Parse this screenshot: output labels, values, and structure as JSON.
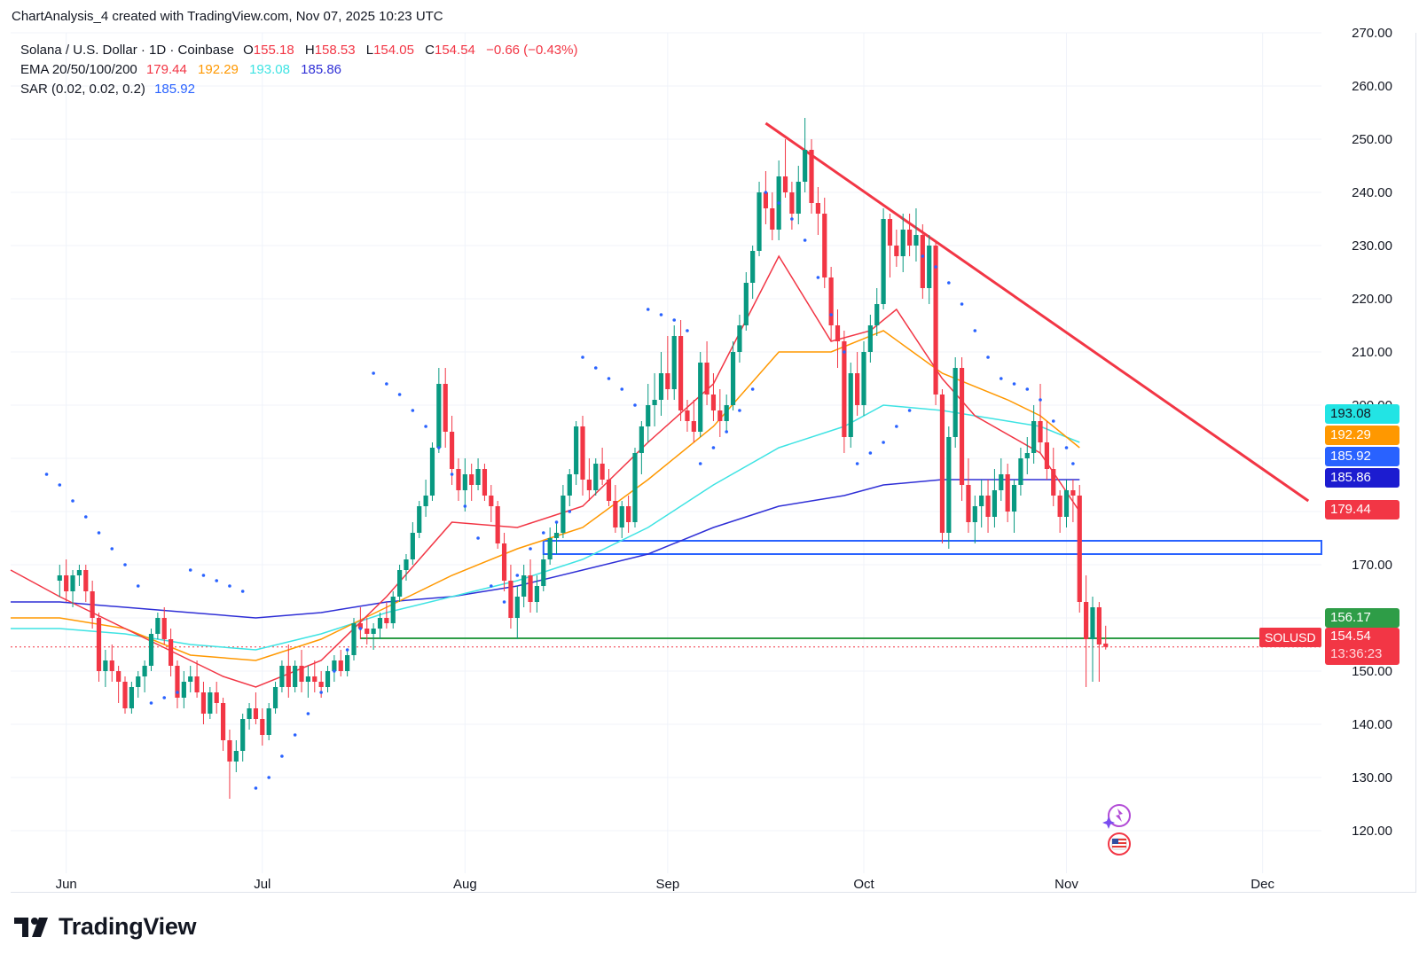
{
  "header": {
    "attribution": "ChartAnalysis_4 created with TradingView.com, Nov 07, 2025 10:23 UTC"
  },
  "legend": {
    "title": "Solana / U.S. Dollar · 1D · Coinbase",
    "open_label": "O",
    "open": "155.18",
    "high_label": "H",
    "high": "158.53",
    "low_label": "L",
    "low": "154.05",
    "close_label": "C",
    "close": "154.54",
    "change": "−0.66 (−0.43%)",
    "ema_label": "EMA 20/50/100/200",
    "ema20": "179.44",
    "ema50": "192.29",
    "ema100": "193.08",
    "ema200": "185.86",
    "sar_label": "SAR (0.02, 0.02, 0.2)",
    "sar": "185.92"
  },
  "colors": {
    "up": "#089981",
    "down": "#f23645",
    "ema20": "#f23645",
    "ema50": "#ff9800",
    "ema100": "#3ee3e3",
    "ema200": "#2f2fd6",
    "sar": "#2962ff",
    "trendline": "#f23645",
    "zone": "#2962ff",
    "support": "#2e9d47"
  },
  "price_tags": {
    "ema100": "193.08",
    "ema50": "192.29",
    "sar": "185.92",
    "ema200": "185.86",
    "ema20": "179.44",
    "support": "156.17",
    "symbol": "SOLUSD",
    "last": "154.54",
    "countdown": "13:36:23"
  },
  "brand": {
    "name": "TradingView"
  },
  "chart_data": {
    "type": "candlestick",
    "symbol": "SOLUSD",
    "timeframe": "1D",
    "x_ticks": [
      "Jun",
      "Jul",
      "Aug",
      "Sep",
      "Oct",
      "Nov",
      "Dec"
    ],
    "x_tick_days": [
      1,
      31,
      62,
      93,
      123,
      154,
      184
    ],
    "y_ticks": [
      120,
      130,
      140,
      150,
      160,
      170,
      180,
      190,
      200,
      210,
      220,
      230,
      240,
      250,
      260,
      270
    ],
    "ylim": [
      112,
      270
    ],
    "xlim": [
      -7.5,
      193
    ],
    "candles": [
      [
        167,
        170,
        164,
        168
      ],
      [
        168,
        171,
        163,
        165
      ],
      [
        165,
        169,
        162,
        168
      ],
      [
        168,
        170,
        166,
        169
      ],
      [
        169,
        170,
        163,
        165
      ],
      [
        165,
        167,
        158,
        160
      ],
      [
        160,
        161,
        148,
        150
      ],
      [
        150,
        154,
        147,
        152
      ],
      [
        152,
        155,
        148,
        150
      ],
      [
        150,
        151,
        144,
        148
      ],
      [
        148,
        149,
        142,
        143
      ],
      [
        143,
        148,
        142,
        147
      ],
      [
        147,
        150,
        145,
        149
      ],
      [
        149,
        152,
        146,
        151
      ],
      [
        151,
        158,
        150,
        157
      ],
      [
        157,
        161,
        156,
        160
      ],
      [
        160,
        162,
        155,
        156
      ],
      [
        156,
        158,
        149,
        151
      ],
      [
        151,
        152,
        143,
        145
      ],
      [
        145,
        150,
        143,
        148
      ],
      [
        148,
        151,
        146,
        149
      ],
      [
        149,
        152,
        145,
        146
      ],
      [
        146,
        148,
        140,
        142
      ],
      [
        142,
        147,
        141,
        146
      ],
      [
        146,
        148,
        142,
        144
      ],
      [
        144,
        145,
        135,
        137
      ],
      [
        137,
        139,
        126,
        133
      ],
      [
        133,
        137,
        131,
        135
      ],
      [
        135,
        142,
        133,
        141
      ],
      [
        141,
        144,
        139,
        143
      ],
      [
        143,
        146,
        140,
        141
      ],
      [
        141,
        143,
        136,
        138
      ],
      [
        138,
        144,
        137,
        143
      ],
      [
        143,
        148,
        142,
        147
      ],
      [
        147,
        152,
        146,
        151
      ],
      [
        151,
        155,
        145,
        147
      ],
      [
        147,
        152,
        146,
        151
      ],
      [
        151,
        154,
        146,
        148
      ],
      [
        148,
        151,
        145,
        149
      ],
      [
        149,
        152,
        146,
        148
      ],
      [
        148,
        150,
        145,
        147
      ],
      [
        147,
        151,
        146,
        150
      ],
      [
        150,
        153,
        148,
        152
      ],
      [
        152,
        154,
        149,
        150
      ],
      [
        150,
        154,
        149,
        153
      ],
      [
        153,
        160,
        152,
        159
      ],
      [
        159,
        162,
        156,
        158
      ],
      [
        158,
        160,
        155,
        157
      ],
      [
        157,
        159,
        154,
        158
      ],
      [
        158,
        161,
        156,
        160
      ],
      [
        160,
        163,
        158,
        159
      ],
      [
        159,
        165,
        158,
        164
      ],
      [
        164,
        170,
        163,
        169
      ],
      [
        169,
        172,
        167,
        171
      ],
      [
        171,
        178,
        170,
        176
      ],
      [
        176,
        182,
        175,
        181
      ],
      [
        181,
        186,
        179,
        183
      ],
      [
        183,
        193,
        182,
        192
      ],
      [
        192,
        207,
        191,
        204
      ],
      [
        204,
        207,
        192,
        195
      ],
      [
        195,
        198,
        185,
        188
      ],
      [
        188,
        190,
        182,
        184
      ],
      [
        184,
        190,
        180,
        187
      ],
      [
        187,
        189,
        182,
        185
      ],
      [
        185,
        190,
        184,
        188
      ],
      [
        188,
        189,
        182,
        183
      ],
      [
        183,
        185,
        178,
        181
      ],
      [
        181,
        182,
        173,
        174
      ],
      [
        174,
        176,
        165,
        167
      ],
      [
        167,
        170,
        158,
        160
      ],
      [
        160,
        166,
        156,
        164
      ],
      [
        164,
        170,
        162,
        168
      ],
      [
        168,
        171,
        161,
        163
      ],
      [
        163,
        168,
        161,
        166
      ],
      [
        166,
        172,
        165,
        171
      ],
      [
        171,
        177,
        170,
        175
      ],
      [
        175,
        178,
        172,
        176
      ],
      [
        176,
        185,
        175,
        183
      ],
      [
        183,
        188,
        181,
        187
      ],
      [
        187,
        197,
        185,
        196
      ],
      [
        196,
        198,
        183,
        186
      ],
      [
        186,
        190,
        182,
        184
      ],
      [
        184,
        190,
        183,
        189
      ],
      [
        189,
        192,
        185,
        186
      ],
      [
        186,
        188,
        181,
        182
      ],
      [
        182,
        185,
        176,
        177
      ],
      [
        177,
        182,
        175,
        181
      ],
      [
        181,
        183,
        176,
        178
      ],
      [
        178,
        192,
        177,
        191
      ],
      [
        191,
        197,
        187,
        196
      ],
      [
        196,
        204,
        193,
        200
      ],
      [
        200,
        206,
        196,
        201
      ],
      [
        201,
        210,
        198,
        206
      ],
      [
        206,
        213,
        201,
        203
      ],
      [
        203,
        215,
        201,
        213
      ],
      [
        213,
        216,
        197,
        199
      ],
      [
        199,
        201,
        195,
        197
      ],
      [
        197,
        201,
        193,
        195
      ],
      [
        195,
        210,
        194,
        208
      ],
      [
        208,
        212,
        200,
        202
      ],
      [
        202,
        206,
        197,
        199
      ],
      [
        199,
        203,
        194,
        197
      ],
      [
        197,
        202,
        195,
        200
      ],
      [
        200,
        212,
        199,
        210
      ],
      [
        210,
        217,
        208,
        215
      ],
      [
        215,
        225,
        214,
        223
      ],
      [
        223,
        230,
        220,
        229
      ],
      [
        229,
        242,
        228,
        240
      ],
      [
        240,
        244,
        234,
        237
      ],
      [
        237,
        240,
        231,
        233
      ],
      [
        233,
        246,
        231,
        243
      ],
      [
        243,
        250,
        239,
        240
      ],
      [
        240,
        242,
        233,
        236
      ],
      [
        236,
        245,
        234,
        242
      ],
      [
        242,
        254,
        240,
        248
      ],
      [
        248,
        250,
        236,
        238
      ],
      [
        238,
        241,
        232,
        236
      ],
      [
        236,
        239,
        222,
        224
      ],
      [
        224,
        226,
        212,
        215
      ],
      [
        215,
        218,
        207,
        212
      ],
      [
        212,
        214,
        191,
        194
      ],
      [
        194,
        208,
        192,
        206
      ],
      [
        206,
        210,
        198,
        200
      ],
      [
        200,
        212,
        198,
        210
      ],
      [
        210,
        217,
        208,
        215
      ],
      [
        215,
        222,
        213,
        219
      ],
      [
        219,
        237,
        218,
        235
      ],
      [
        235,
        236,
        224,
        230
      ],
      [
        230,
        233,
        226,
        228
      ],
      [
        228,
        236,
        225,
        233
      ],
      [
        233,
        236,
        228,
        230
      ],
      [
        230,
        237,
        227,
        232
      ],
      [
        232,
        234,
        220,
        222
      ],
      [
        222,
        232,
        219,
        230
      ],
      [
        230,
        231,
        200,
        202
      ],
      [
        202,
        203,
        174,
        176
      ],
      [
        176,
        196,
        173,
        194
      ],
      [
        194,
        209,
        192,
        207
      ],
      [
        207,
        209,
        182,
        185
      ],
      [
        185,
        190,
        176,
        178
      ],
      [
        178,
        183,
        174,
        181
      ],
      [
        181,
        186,
        177,
        183
      ],
      [
        183,
        186,
        176,
        179
      ],
      [
        179,
        188,
        177,
        184
      ],
      [
        184,
        190,
        182,
        187
      ],
      [
        187,
        189,
        178,
        180
      ],
      [
        180,
        186,
        176,
        185
      ],
      [
        185,
        192,
        183,
        190
      ],
      [
        190,
        194,
        187,
        191
      ],
      [
        191,
        200,
        189,
        197
      ],
      [
        197,
        204,
        191,
        193
      ],
      [
        193,
        197,
        186,
        188
      ],
      [
        188,
        192,
        181,
        183
      ],
      [
        183,
        184,
        176,
        179
      ],
      [
        179,
        186,
        177,
        184
      ],
      [
        184,
        186,
        178,
        183
      ],
      [
        183,
        185,
        161,
        163
      ],
      [
        163,
        168,
        147,
        156
      ],
      [
        156,
        164,
        148,
        162
      ],
      [
        162,
        163,
        148,
        155
      ],
      [
        155.18,
        158.53,
        154.05,
        154.54
      ]
    ],
    "ema20": [
      [
        -7.5,
        169
      ],
      [
        0,
        164
      ],
      [
        10,
        158
      ],
      [
        20,
        152
      ],
      [
        25,
        149
      ],
      [
        30,
        147
      ],
      [
        40,
        152
      ],
      [
        50,
        164
      ],
      [
        60,
        178
      ],
      [
        70,
        177
      ],
      [
        80,
        181
      ],
      [
        90,
        193
      ],
      [
        100,
        204
      ],
      [
        110,
        228
      ],
      [
        118,
        212
      ],
      [
        124,
        214
      ],
      [
        128,
        218
      ],
      [
        135,
        205
      ],
      [
        140,
        198
      ],
      [
        150,
        191
      ],
      [
        156,
        180
      ]
    ],
    "ema50": [
      [
        -7.5,
        160
      ],
      [
        0,
        160
      ],
      [
        10,
        158
      ],
      [
        20,
        153
      ],
      [
        30,
        152
      ],
      [
        40,
        156
      ],
      [
        50,
        162
      ],
      [
        60,
        168
      ],
      [
        70,
        173
      ],
      [
        80,
        177
      ],
      [
        90,
        186
      ],
      [
        100,
        196
      ],
      [
        110,
        210
      ],
      [
        118,
        210
      ],
      [
        126,
        214
      ],
      [
        135,
        206
      ],
      [
        145,
        201
      ],
      [
        150,
        198
      ],
      [
        156,
        192
      ]
    ],
    "ema100": [
      [
        -7.5,
        158
      ],
      [
        0,
        158
      ],
      [
        10,
        157
      ],
      [
        20,
        155
      ],
      [
        30,
        154
      ],
      [
        40,
        157
      ],
      [
        50,
        161
      ],
      [
        60,
        164
      ],
      [
        70,
        167
      ],
      [
        80,
        171
      ],
      [
        90,
        177
      ],
      [
        100,
        185
      ],
      [
        110,
        192
      ],
      [
        120,
        196
      ],
      [
        126,
        200
      ],
      [
        135,
        199
      ],
      [
        145,
        197
      ],
      [
        150,
        196
      ],
      [
        156,
        193
      ]
    ],
    "ema200": [
      [
        -7.5,
        163
      ],
      [
        0,
        163
      ],
      [
        10,
        162
      ],
      [
        20,
        161
      ],
      [
        30,
        160
      ],
      [
        40,
        161
      ],
      [
        50,
        163
      ],
      [
        60,
        164
      ],
      [
        70,
        166
      ],
      [
        80,
        169
      ],
      [
        90,
        172
      ],
      [
        100,
        177
      ],
      [
        110,
        181
      ],
      [
        120,
        183
      ],
      [
        126,
        185
      ],
      [
        135,
        186
      ],
      [
        145,
        186
      ],
      [
        150,
        186
      ],
      [
        156,
        186
      ]
    ],
    "sar": [
      [
        -2,
        187
      ],
      [
        0,
        185
      ],
      [
        2,
        182
      ],
      [
        4,
        179
      ],
      [
        6,
        176
      ],
      [
        8,
        173
      ],
      [
        10,
        170
      ],
      [
        12,
        166
      ],
      [
        14,
        144
      ],
      [
        16,
        145
      ],
      [
        18,
        146
      ],
      [
        20,
        169
      ],
      [
        22,
        168
      ],
      [
        24,
        167
      ],
      [
        26,
        166
      ],
      [
        28,
        165
      ],
      [
        30,
        128
      ],
      [
        32,
        130
      ],
      [
        34,
        134
      ],
      [
        36,
        138
      ],
      [
        38,
        142
      ],
      [
        40,
        146
      ],
      [
        42,
        150
      ],
      [
        44,
        154
      ],
      [
        46,
        158
      ],
      [
        48,
        206
      ],
      [
        50,
        204
      ],
      [
        52,
        202
      ],
      [
        54,
        199
      ],
      [
        56,
        196
      ],
      [
        58,
        192
      ],
      [
        60,
        187
      ],
      [
        62,
        181
      ],
      [
        64,
        175
      ],
      [
        66,
        166
      ],
      [
        68,
        163
      ],
      [
        70,
        168
      ],
      [
        72,
        173
      ],
      [
        74,
        176
      ],
      [
        76,
        178
      ],
      [
        78,
        180
      ],
      [
        80,
        209
      ],
      [
        82,
        207
      ],
      [
        84,
        205
      ],
      [
        86,
        203
      ],
      [
        88,
        200
      ],
      [
        90,
        218
      ],
      [
        92,
        217
      ],
      [
        94,
        216
      ],
      [
        96,
        214
      ],
      [
        98,
        189
      ],
      [
        100,
        192
      ],
      [
        102,
        195
      ],
      [
        104,
        199
      ],
      [
        106,
        203
      ],
      [
        108,
        240
      ],
      [
        110,
        238
      ],
      [
        112,
        235
      ],
      [
        114,
        231
      ],
      [
        116,
        224
      ],
      [
        118,
        217
      ],
      [
        120,
        210
      ],
      [
        122,
        189
      ],
      [
        124,
        191
      ],
      [
        126,
        193
      ],
      [
        128,
        196
      ],
      [
        130,
        199
      ],
      [
        132,
        228
      ],
      [
        134,
        226
      ],
      [
        136,
        223
      ],
      [
        138,
        219
      ],
      [
        140,
        214
      ],
      [
        142,
        209
      ],
      [
        144,
        205
      ],
      [
        146,
        204
      ],
      [
        148,
        203
      ],
      [
        150,
        201
      ],
      [
        152,
        197
      ],
      [
        154,
        192
      ],
      [
        155,
        189
      ]
    ],
    "trendline": {
      "start": [
        108,
        253
      ],
      "end": [
        191,
        182
      ]
    },
    "zone": {
      "day_start": 74,
      "price_top": 174.5,
      "price_bottom": 172
    },
    "support": {
      "day_start": 46,
      "price": 156.17
    },
    "last_price": 154.54
  }
}
